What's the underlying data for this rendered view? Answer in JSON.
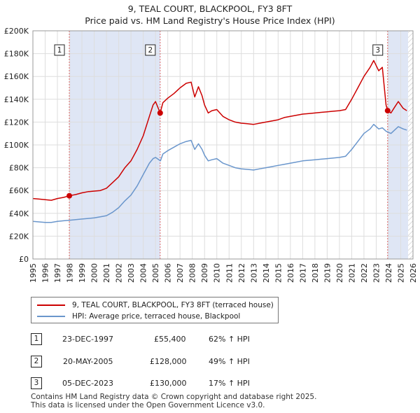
{
  "title_line1": "9, TEAL COURT, BLACKPOOL, FY3 8FT",
  "title_line2": "Price paid vs. HM Land Registry's House Price Index (HPI)",
  "colors": {
    "property_line": "#cc0000",
    "hpi_line": "#6a96cc",
    "shade": "#dfe6f5",
    "grid": "#dddddd",
    "vline": "#dd6666"
  },
  "chart_data": {
    "type": "line",
    "title": "Price paid vs. HM Land Registry's House Price Index (HPI)",
    "xlabel": "",
    "ylabel": "",
    "xlim": [
      1995,
      2026
    ],
    "ylim": [
      0,
      200000
    ],
    "grid": true,
    "y_ticks": [
      0,
      20000,
      40000,
      60000,
      80000,
      100000,
      120000,
      140000,
      160000,
      180000,
      200000
    ],
    "y_tick_labels": [
      "£0",
      "£20K",
      "£40K",
      "£60K",
      "£80K",
      "£100K",
      "£120K",
      "£140K",
      "£160K",
      "£180K",
      "£200K"
    ],
    "x_ticks": [
      1995,
      1996,
      1997,
      1998,
      1999,
      2000,
      2001,
      2002,
      2003,
      2004,
      2005,
      2006,
      2007,
      2008,
      2009,
      2010,
      2011,
      2012,
      2013,
      2014,
      2015,
      2016,
      2017,
      2018,
      2019,
      2020,
      2021,
      2022,
      2023,
      2024,
      2025,
      2026
    ],
    "shaded_ranges": [
      [
        1997.97,
        2005.38
      ],
      [
        2023.93,
        2025.6
      ]
    ],
    "hatched_range": [
      2025.6,
      2026
    ],
    "series": [
      {
        "name": "9, TEAL COURT, BLACKPOOL, FY3 8FT (terraced house)",
        "color": "#cc0000",
        "x": [
          1995.0,
          1995.5,
          1996.0,
          1996.5,
          1997.0,
          1997.5,
          1997.97,
          1998.5,
          1999.0,
          1999.5,
          2000.0,
          2000.5,
          2001.0,
          2001.5,
          2002.0,
          2002.5,
          2003.0,
          2003.5,
          2004.0,
          2004.5,
          2004.8,
          2005.0,
          2005.38,
          2005.6,
          2006.0,
          2006.5,
          2007.0,
          2007.5,
          2007.9,
          2008.2,
          2008.5,
          2008.8,
          2009.0,
          2009.3,
          2009.6,
          2010.0,
          2010.5,
          2011.0,
          2011.5,
          2012.0,
          2012.5,
          2013.0,
          2013.5,
          2014.0,
          2014.5,
          2015.0,
          2015.5,
          2016.0,
          2016.5,
          2017.0,
          2017.5,
          2018.0,
          2018.5,
          2019.0,
          2019.5,
          2020.0,
          2020.5,
          2021.0,
          2021.5,
          2022.0,
          2022.5,
          2022.8,
          2023.2,
          2023.5,
          2023.8,
          2023.93,
          2024.2,
          2024.5,
          2024.8,
          2025.0,
          2025.2,
          2025.5
        ],
        "values": [
          53000,
          52500,
          52000,
          51500,
          53000,
          54000,
          55400,
          56500,
          58000,
          59000,
          59500,
          60000,
          62000,
          67000,
          72000,
          80000,
          86000,
          96000,
          108000,
          125000,
          135000,
          138000,
          128000,
          137000,
          141000,
          145000,
          150000,
          154000,
          155000,
          142000,
          151000,
          143000,
          135000,
          128000,
          130000,
          131000,
          125000,
          122000,
          120000,
          119000,
          118500,
          118000,
          119000,
          120000,
          121000,
          122000,
          124000,
          125000,
          126000,
          127000,
          127500,
          128000,
          128500,
          129000,
          129500,
          130000,
          131000,
          140000,
          150000,
          160000,
          168000,
          174000,
          165000,
          168000,
          135000,
          130000,
          128000,
          133000,
          138000,
          135000,
          132000,
          130000
        ]
      },
      {
        "name": "HPI: Average price, terraced house, Blackpool",
        "color": "#6a96cc",
        "x": [
          1995.0,
          1995.5,
          1996.0,
          1996.5,
          1997.0,
          1997.5,
          1998.0,
          1998.5,
          1999.0,
          1999.5,
          2000.0,
          2000.5,
          2001.0,
          2001.5,
          2002.0,
          2002.5,
          2003.0,
          2003.5,
          2004.0,
          2004.5,
          2004.8,
          2005.0,
          2005.4,
          2005.6,
          2006.0,
          2006.5,
          2007.0,
          2007.5,
          2007.9,
          2008.2,
          2008.5,
          2008.8,
          2009.0,
          2009.3,
          2009.6,
          2010.0,
          2010.5,
          2011.0,
          2011.5,
          2012.0,
          2012.5,
          2013.0,
          2013.5,
          2014.0,
          2014.5,
          2015.0,
          2015.5,
          2016.0,
          2016.5,
          2017.0,
          2017.5,
          2018.0,
          2018.5,
          2019.0,
          2019.5,
          2020.0,
          2020.5,
          2021.0,
          2021.5,
          2022.0,
          2022.5,
          2022.8,
          2023.2,
          2023.5,
          2023.8,
          2024.0,
          2024.2,
          2024.5,
          2024.8,
          2025.0,
          2025.2,
          2025.5
        ],
        "values": [
          33000,
          32500,
          32000,
          32000,
          33000,
          33500,
          34000,
          34500,
          35000,
          35500,
          36000,
          37000,
          38000,
          41000,
          45000,
          51000,
          56000,
          64000,
          74000,
          84000,
          88000,
          89000,
          86000,
          92000,
          95000,
          98000,
          101000,
          103000,
          104000,
          96000,
          101000,
          96000,
          91000,
          86000,
          87000,
          88000,
          84000,
          82000,
          80000,
          79000,
          78500,
          78000,
          79000,
          80000,
          81000,
          82000,
          83000,
          84000,
          85000,
          86000,
          86500,
          87000,
          87500,
          88000,
          88500,
          89000,
          90000,
          96000,
          103000,
          110000,
          114000,
          118000,
          114000,
          115000,
          112000,
          111000,
          110000,
          113000,
          116000,
          115000,
          114000,
          113000
        ]
      }
    ],
    "markers": [
      {
        "label": "1",
        "x": 1997.97,
        "y": 55400
      },
      {
        "label": "2",
        "x": 2005.38,
        "y": 128000
      },
      {
        "label": "3",
        "x": 2023.93,
        "y": 130000
      }
    ]
  },
  "legend": {
    "items": [
      {
        "label": "9, TEAL COURT, BLACKPOOL, FY3 8FT (terraced house)"
      },
      {
        "label": "HPI: Average price, terraced house, Blackpool"
      }
    ]
  },
  "sales": [
    {
      "num": "1",
      "date": "23-DEC-1997",
      "price": "£55,400",
      "hpi": "62% ↑ HPI"
    },
    {
      "num": "2",
      "date": "20-MAY-2005",
      "price": "£128,000",
      "hpi": "49% ↑ HPI"
    },
    {
      "num": "3",
      "date": "05-DEC-2023",
      "price": "£130,000",
      "hpi": "17% ↑ HPI"
    }
  ],
  "footer": {
    "line1": "Contains HM Land Registry data © Crown copyright and database right 2025.",
    "line2": "This data is licensed under the Open Government Licence v3.0."
  }
}
